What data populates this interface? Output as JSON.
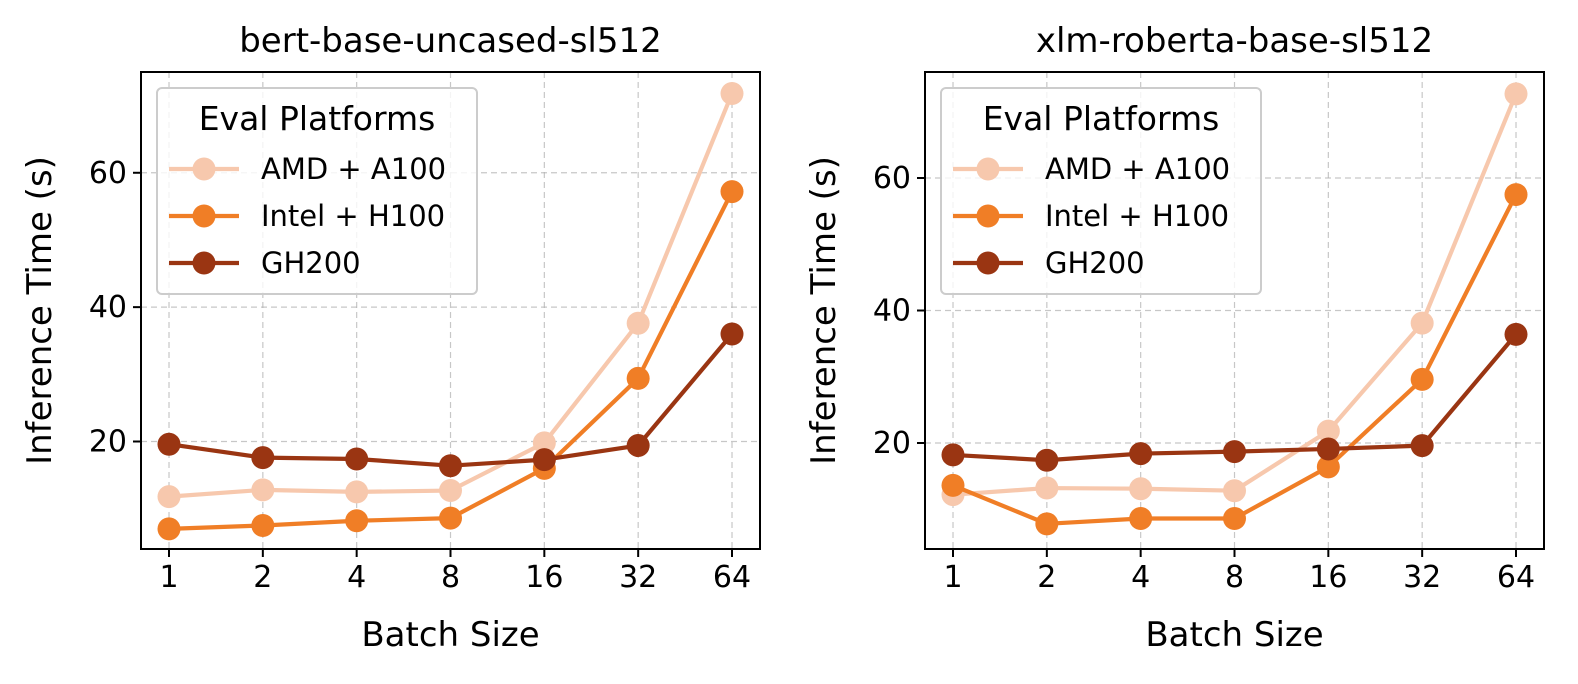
{
  "chart_data": [
    {
      "type": "line",
      "title": "bert-base-uncased-sl512",
      "xlabel": "Batch Size",
      "ylabel": "Inference Time (s)",
      "categories": [
        "1",
        "2",
        "4",
        "8",
        "16",
        "32",
        "64"
      ],
      "ylim": [
        4,
        75
      ],
      "yticks": [
        20,
        40,
        60
      ],
      "grid": true,
      "legend": {
        "title": "Eval Platforms",
        "placement": "top-left"
      },
      "series": [
        {
          "name": "AMD + A100",
          "color": "#f7c8ad",
          "values": [
            11.8,
            12.8,
            12.5,
            12.7,
            19.8,
            37.6,
            71.8
          ]
        },
        {
          "name": "Intel + H100",
          "color": "#f07e26",
          "values": [
            7.0,
            7.5,
            8.2,
            8.6,
            16.0,
            29.4,
            57.2
          ]
        },
        {
          "name": "GH200",
          "color": "#9a3512",
          "values": [
            19.6,
            17.6,
            17.4,
            16.4,
            17.3,
            19.4,
            36.0
          ]
        }
      ]
    },
    {
      "type": "line",
      "title": "xlm-roberta-base-sl512",
      "xlabel": "Batch Size",
      "ylabel": "Inference Time (s)",
      "categories": [
        "1",
        "2",
        "4",
        "8",
        "16",
        "32",
        "64"
      ],
      "ylim": [
        4,
        76
      ],
      "yticks": [
        20,
        40,
        60
      ],
      "grid": true,
      "legend": {
        "title": "Eval Platforms",
        "placement": "top-left"
      },
      "series": [
        {
          "name": "AMD + A100",
          "color": "#f7c8ad",
          "values": [
            12.2,
            13.2,
            13.1,
            12.8,
            21.8,
            38.1,
            72.7
          ]
        },
        {
          "name": "Intel + H100",
          "color": "#f07e26",
          "values": [
            13.6,
            7.8,
            8.6,
            8.6,
            16.4,
            29.6,
            57.5
          ]
        },
        {
          "name": "GH200",
          "color": "#9a3512",
          "values": [
            18.2,
            17.4,
            18.4,
            18.7,
            19.1,
            19.6,
            36.4
          ]
        }
      ]
    }
  ]
}
